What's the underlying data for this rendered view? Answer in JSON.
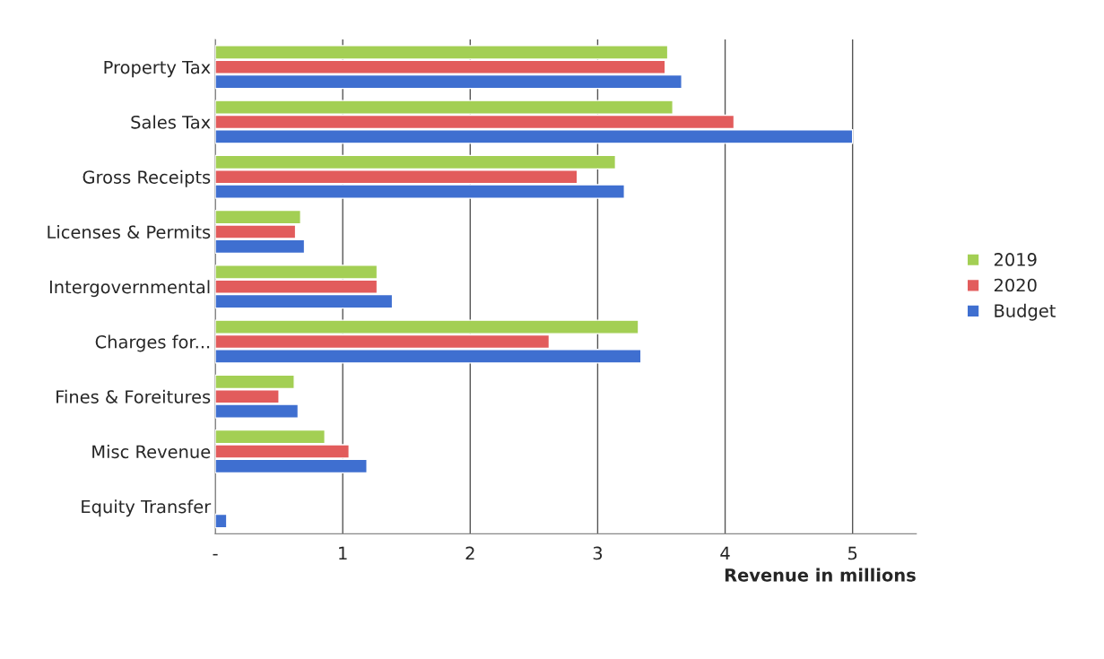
{
  "chart_data": {
    "type": "bar",
    "orientation": "horizontal",
    "xlabel": "Revenue in millions",
    "categories": [
      "Property Tax",
      "Sales Tax",
      "Gross Receipts",
      "Licenses & Permits",
      "Intergovernmental",
      "Charges for...",
      "Fines & Foreitures",
      "Misc Revenue",
      "Equity Transfer"
    ],
    "series": [
      {
        "name": "2019",
        "color": "#a3cf54",
        "values": [
          3.55,
          3.59,
          3.14,
          0.67,
          1.27,
          3.32,
          0.62,
          0.86,
          null
        ]
      },
      {
        "name": "2020",
        "color": "#e25c5c",
        "values": [
          3.53,
          4.07,
          2.84,
          0.63,
          1.27,
          2.62,
          0.5,
          1.05,
          null
        ]
      },
      {
        "name": "Budget",
        "color": "#3f6fd0",
        "values": [
          3.66,
          5.0,
          3.21,
          0.7,
          1.39,
          3.34,
          0.65,
          1.19,
          0.09
        ]
      }
    ],
    "xlim": [
      0,
      5.5
    ],
    "xticks": [
      {
        "value": 0,
        "label": "-"
      },
      1,
      2,
      3,
      4,
      5
    ],
    "grid": "x",
    "legend": "right"
  }
}
